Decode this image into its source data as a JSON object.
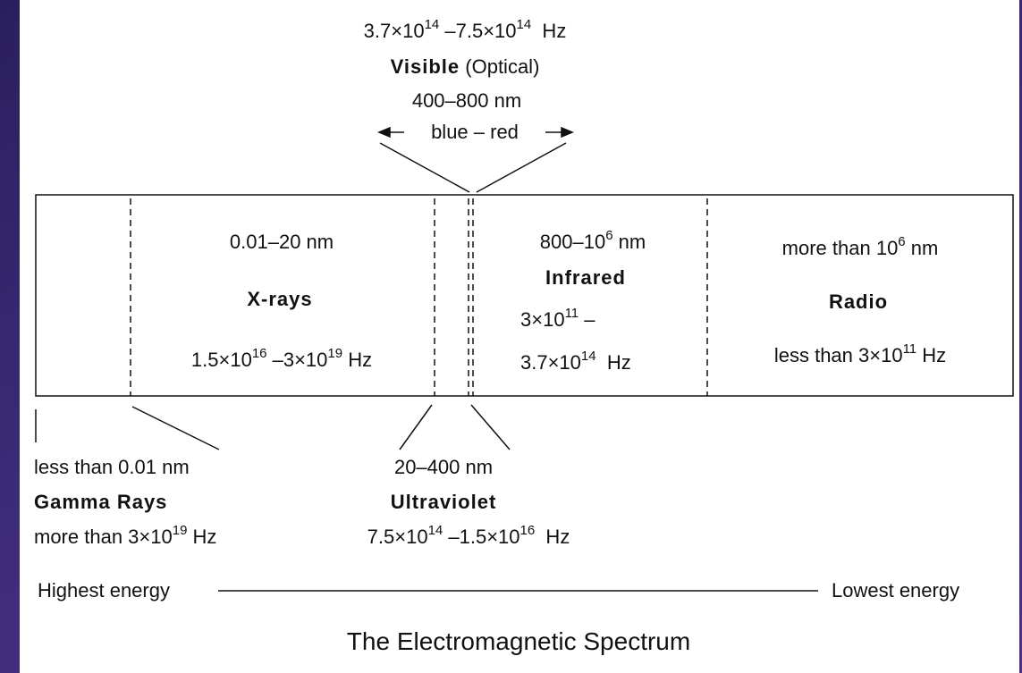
{
  "visible": {
    "freq": [
      {
        "t": "3.7×10"
      },
      {
        "sup": "14"
      },
      {
        "t": " –7.5×10"
      },
      {
        "sup": "14"
      },
      {
        "t": "  Hz"
      }
    ],
    "name": "Visible",
    "qualifier": "(Optical)",
    "wavelength": "400–800 nm",
    "colors": "blue – red"
  },
  "xrays": {
    "wavelength": [
      {
        "t": "0.01–20 nm"
      }
    ],
    "name": "X-rays",
    "freq": [
      {
        "t": "1.5×10"
      },
      {
        "sup": "16"
      },
      {
        "t": " –3×10"
      },
      {
        "sup": "19"
      },
      {
        "t": " Hz"
      }
    ]
  },
  "infrared": {
    "wavelength": [
      {
        "t": "800–10"
      },
      {
        "sup": "6"
      },
      {
        "t": " nm"
      }
    ],
    "name": "Infrared",
    "freq_line1": [
      {
        "t": "3×10"
      },
      {
        "sup": "11"
      },
      {
        "t": " –"
      }
    ],
    "freq_line2": [
      {
        "t": "3.7×10"
      },
      {
        "sup": "14"
      },
      {
        "t": "  Hz"
      }
    ]
  },
  "radio": {
    "wavelength": [
      {
        "t": "more than 10"
      },
      {
        "sup": "6"
      },
      {
        "t": " nm"
      }
    ],
    "name": "Radio",
    "freq": [
      {
        "t": "less than 3×10"
      },
      {
        "sup": "11"
      },
      {
        "t": " Hz"
      }
    ]
  },
  "gamma": {
    "wavelength": [
      {
        "t": "less than 0.01 nm"
      }
    ],
    "name": "Gamma Rays",
    "freq": [
      {
        "t": "more than 3×10"
      },
      {
        "sup": "19"
      },
      {
        "t": " Hz"
      }
    ]
  },
  "ultraviolet": {
    "wavelength": [
      {
        "t": "20–400 nm"
      }
    ],
    "name": "Ultraviolet",
    "freq": [
      {
        "t": "7.5×10"
      },
      {
        "sup": "14"
      },
      {
        "t": " –1.5×10"
      },
      {
        "sup": "16"
      },
      {
        "t": "  Hz"
      }
    ]
  },
  "energy": {
    "high": "Highest energy",
    "low": "Lowest energy"
  },
  "title": "The Electromagnetic Spectrum"
}
